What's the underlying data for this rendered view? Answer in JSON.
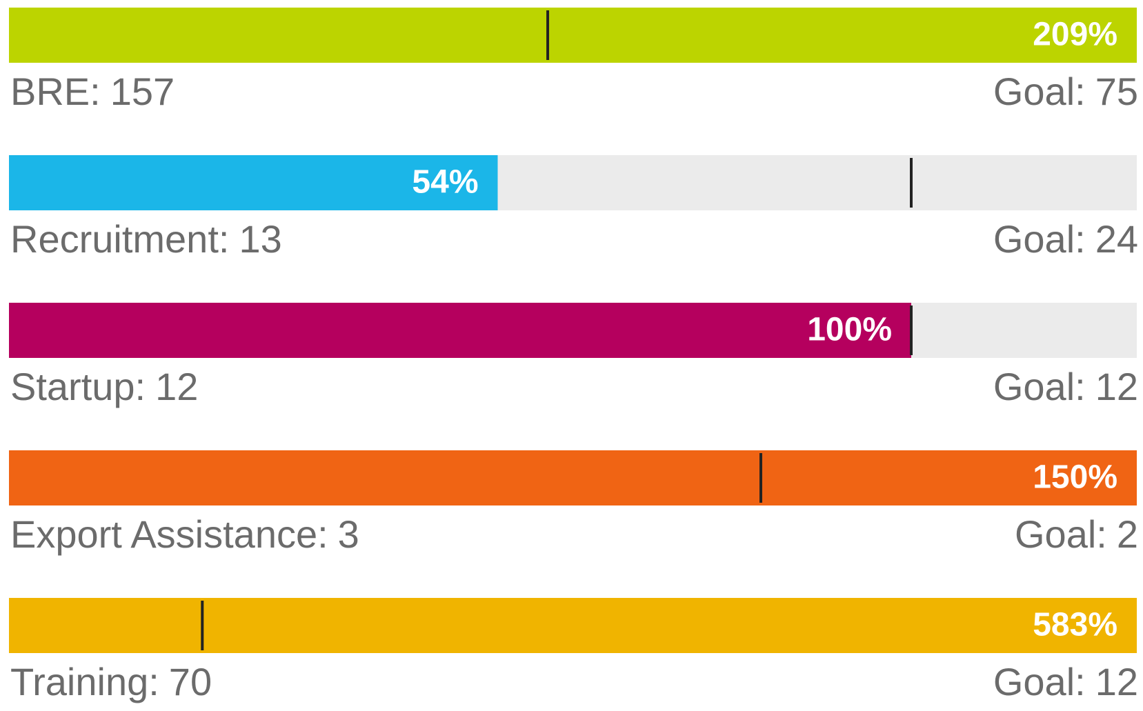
{
  "goals": [
    {
      "name": "BRE:",
      "value": 157,
      "goal_label": "Goal:",
      "goal": 75,
      "percent_label": "209%",
      "color": "#bcd400"
    },
    {
      "name": "Recruitment:",
      "value": 13,
      "goal_label": "Goal:",
      "goal": 24,
      "percent_label": "54%",
      "color": "#1bb6e8"
    },
    {
      "name": "Startup:",
      "value": 12,
      "goal_label": "Goal:",
      "goal": 12,
      "percent_label": "100%",
      "color": "#b5005e"
    },
    {
      "name": "Export Assistance:",
      "value": 3,
      "goal_label": "Goal:",
      "goal": 2,
      "percent_label": "150%",
      "color": "#f06414"
    },
    {
      "name": "Training:",
      "value": 70,
      "goal_label": "Goal:",
      "goal": 12,
      "percent_label": "583%",
      "color": "#f0b400"
    }
  ]
}
